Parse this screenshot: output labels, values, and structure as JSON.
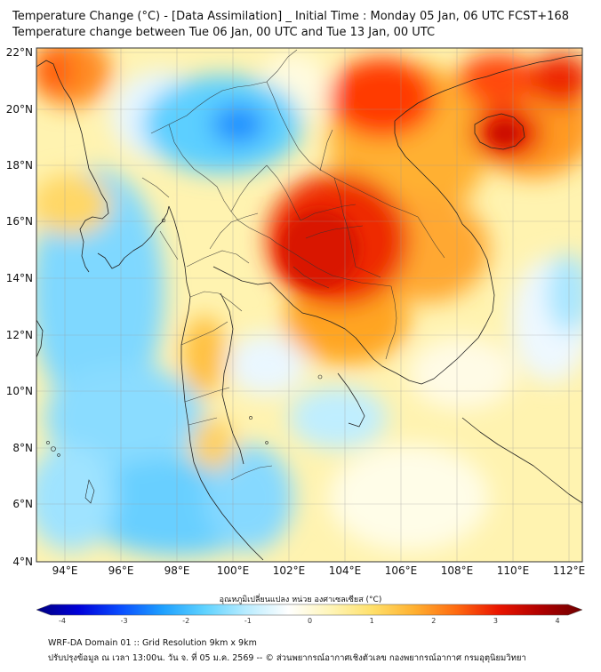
{
  "header": {
    "title_line1": "Temperature Change (°C) - [Data Assimilation] _ Initial Time : Monday 05 Jan, 06 UTC FCST+168",
    "title_line2": "Temperature change between Tue 06 Jan, 00 UTC and Tue 13 Jan, 00 UTC"
  },
  "map": {
    "lat_labels": [
      "22°N",
      "20°N",
      "18°N",
      "16°N",
      "14°N",
      "12°N",
      "10°N",
      "8°N",
      "6°N",
      "4°N"
    ],
    "lon_labels": [
      "94°E",
      "96°E",
      "98°E",
      "100°E",
      "102°E",
      "104°E",
      "106°E",
      "108°E",
      "110°E",
      "112°E"
    ],
    "colorbar": {
      "label": "อุณหภูมิเปลี่ยนแปลง หน่วย องศาเซลเซียส (°C)",
      "ticks": [
        "-4",
        "-3",
        "-2",
        "-1",
        "0",
        "1",
        "2",
        "3",
        "4"
      ],
      "colors": [
        "#00007f",
        "#0000d9",
        "#0a4dff",
        "#1ea0ff",
        "#5ed2ff",
        "#b9ecff",
        "#ffffff",
        "#fff5b8",
        "#ffe06a",
        "#ffb030",
        "#ff6a10",
        "#ea1500",
        "#b00000",
        "#6e0000"
      ]
    }
  },
  "footer": {
    "line1": "WRF-DA Domain 01 :: Grid Resolution 9km x 9km",
    "line2": "ปรับปรุงข้อมูล ณ เวลา 13:00น. วัน จ. ที่ 05 ม.ค. 2569 -- © ส่วนพยากรณ์อากาศเชิงตัวเลข กองพยากรณ์อากาศ กรมอุตุนิยมวิทยา"
  }
}
